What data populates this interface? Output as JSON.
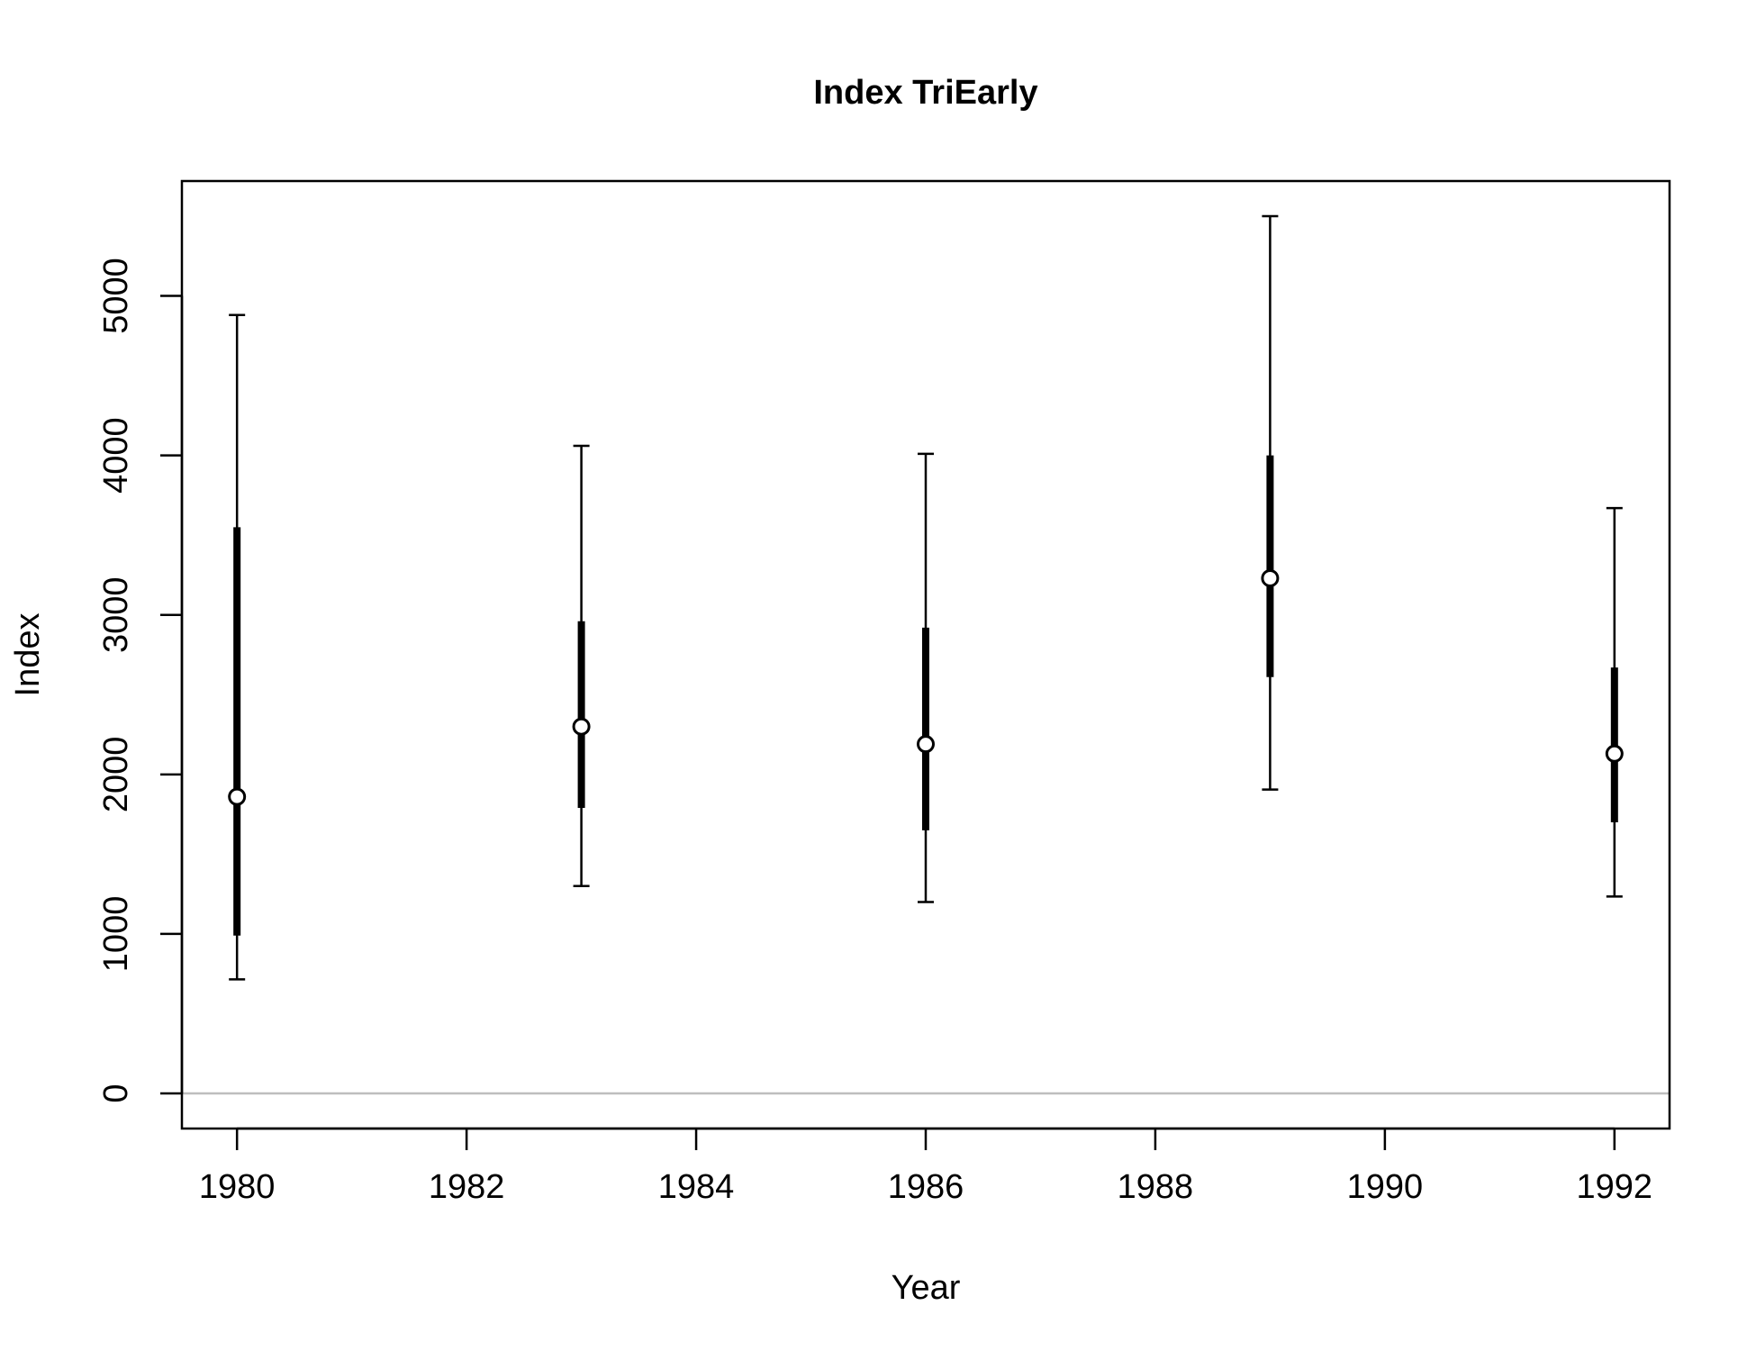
{
  "chart_data": {
    "type": "errorbar",
    "title": "Index TriEarly",
    "xlabel": "Year",
    "ylabel": "Index",
    "xlim": [
      1979.52,
      1992.48
    ],
    "ylim": [
      -220,
      5720
    ],
    "xticks": [
      1980,
      1982,
      1984,
      1986,
      1988,
      1990,
      1992
    ],
    "xtick_labels": [
      "1980",
      "1982",
      "1984",
      "1986",
      "1988",
      "1990",
      "1992"
    ],
    "yticks": [
      0,
      1000,
      2000,
      3000,
      4000,
      5000
    ],
    "ytick_labels": [
      "0",
      "1000",
      "2000",
      "3000",
      "4000",
      "5000"
    ],
    "reference_line": {
      "y": 0,
      "color": "#bebebe"
    },
    "points": [
      {
        "x": 1980,
        "y": 1860,
        "inner_low": 990,
        "inner_high": 3550,
        "outer_low": 715,
        "outer_high": 4880
      },
      {
        "x": 1983,
        "y": 2300,
        "inner_low": 1790,
        "inner_high": 2960,
        "outer_low": 1300,
        "outer_high": 4060
      },
      {
        "x": 1986,
        "y": 2190,
        "inner_low": 1650,
        "inner_high": 2920,
        "outer_low": 1200,
        "outer_high": 4010
      },
      {
        "x": 1989,
        "y": 3230,
        "inner_low": 2610,
        "inner_high": 4000,
        "outer_low": 1905,
        "outer_high": 5500
      },
      {
        "x": 1992,
        "y": 2130,
        "inner_low": 1700,
        "inner_high": 2670,
        "outer_low": 1235,
        "outer_high": 3670
      }
    ],
    "grid": false,
    "legend": false
  }
}
